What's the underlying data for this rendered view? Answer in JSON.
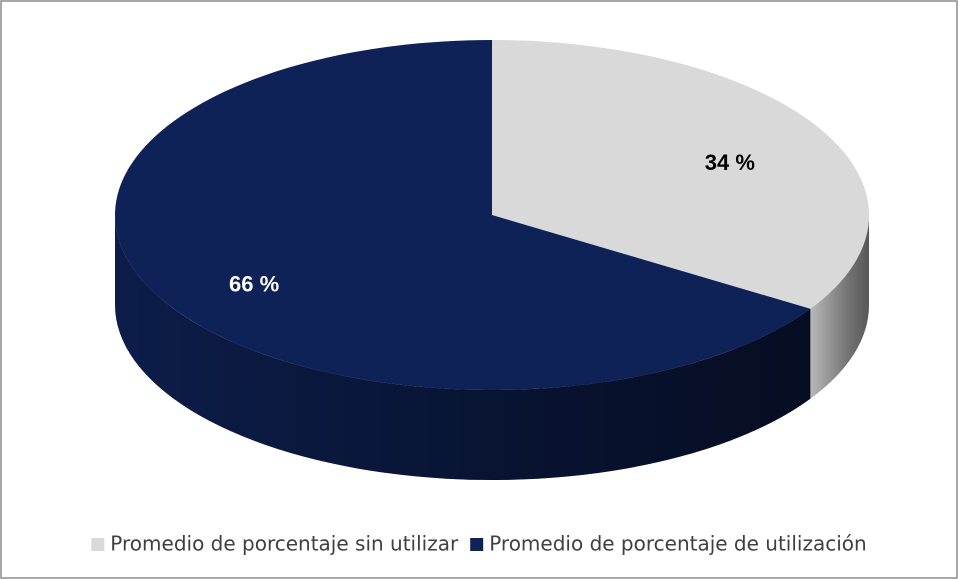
{
  "chart_data": {
    "type": "pie",
    "categories": [
      "Promedio de porcentaje sin utilizar",
      "Promedio de porcentaje de utilización"
    ],
    "values": [
      34,
      66
    ],
    "value_labels": [
      "34 %",
      "66 %"
    ],
    "colors": [
      "#d9d9d9",
      "#0f2257"
    ],
    "label_colors": [
      "#000000",
      "#ffffff"
    ],
    "legend": "bottom"
  }
}
